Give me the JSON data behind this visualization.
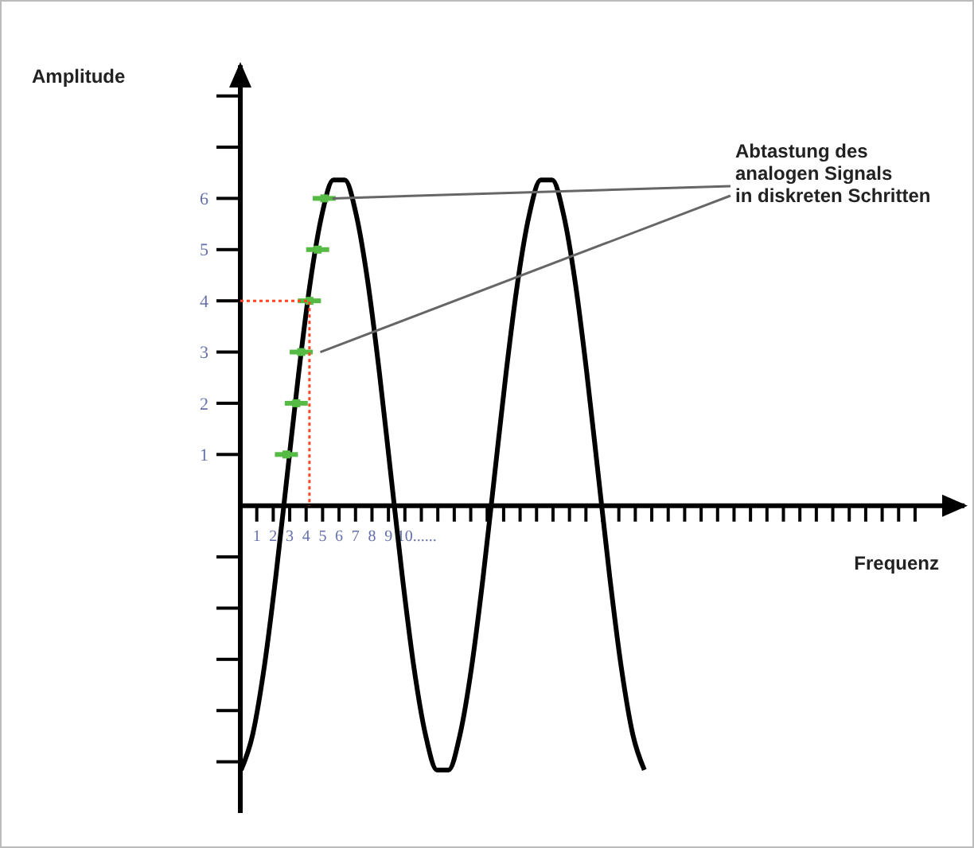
{
  "chart_data": {
    "type": "line",
    "xlabel": "Frequenz",
    "ylabel": "Amplitude",
    "xlim": [
      0,
      44
    ],
    "ylim": [
      -6,
      8.6
    ],
    "xticks": [
      {
        "value": 1,
        "label": "1"
      },
      {
        "value": 2,
        "label": "2"
      },
      {
        "value": 3,
        "label": "3"
      },
      {
        "value": 4,
        "label": "4"
      },
      {
        "value": 5,
        "label": "5"
      },
      {
        "value": 6,
        "label": "6"
      },
      {
        "value": 7,
        "label": "7"
      },
      {
        "value": 8,
        "label": "8"
      },
      {
        "value": 9,
        "label": "9"
      },
      {
        "value": 10,
        "label": "10......"
      },
      {
        "value": 11,
        "label": null
      },
      {
        "value": 12,
        "label": null
      },
      {
        "value": 13,
        "label": null
      },
      {
        "value": 14,
        "label": null
      },
      {
        "value": 15,
        "label": null
      },
      {
        "value": 16,
        "label": null
      },
      {
        "value": 17,
        "label": null
      },
      {
        "value": 18,
        "label": null
      },
      {
        "value": 19,
        "label": null
      },
      {
        "value": 20,
        "label": null
      },
      {
        "value": 21,
        "label": null
      },
      {
        "value": 22,
        "label": null
      },
      {
        "value": 23,
        "label": null
      },
      {
        "value": 24,
        "label": null
      },
      {
        "value": 25,
        "label": null
      },
      {
        "value": 26,
        "label": null
      },
      {
        "value": 27,
        "label": null
      },
      {
        "value": 28,
        "label": null
      },
      {
        "value": 29,
        "label": null
      },
      {
        "value": 30,
        "label": null
      },
      {
        "value": 31,
        "label": null
      },
      {
        "value": 32,
        "label": null
      },
      {
        "value": 33,
        "label": null
      },
      {
        "value": 34,
        "label": null
      },
      {
        "value": 35,
        "label": null
      },
      {
        "value": 36,
        "label": null
      },
      {
        "value": 37,
        "label": null
      },
      {
        "value": 38,
        "label": null
      },
      {
        "value": 39,
        "label": null
      },
      {
        "value": 40,
        "label": null
      },
      {
        "value": 41,
        "label": null
      }
    ],
    "yticks": [
      {
        "value": -5,
        "label": null
      },
      {
        "value": -4,
        "label": null
      },
      {
        "value": -3,
        "label": null
      },
      {
        "value": -2,
        "label": null
      },
      {
        "value": -1,
        "label": null
      },
      1,
      2,
      3,
      4,
      5,
      6,
      {
        "value": 7,
        "label": null
      },
      {
        "value": 8,
        "label": null
      }
    ],
    "grid": false,
    "series": [
      {
        "color": "#000000",
        "line_style": "solid",
        "marker": "none",
        "x": [
          0.05,
          0.75,
          1.45,
          2.15,
          2.85,
          3.55,
          4.25,
          4.95,
          5.65,
          6.35,
          7.05,
          7.75,
          8.45,
          9.15,
          9.85,
          10.55,
          11.25,
          11.95,
          12.65,
          13.35,
          14.05,
          14.75,
          15.45,
          16.15,
          16.85,
          17.55,
          18.25,
          18.95,
          19.65,
          20.35,
          21.05,
          21.75,
          22.45,
          23.15,
          23.85,
          24.55
        ],
        "values": [
          -5.16,
          -4.47,
          -3.16,
          -1.4,
          0.6,
          2.6,
          4.36,
          5.67,
          6.36,
          6.36,
          5.67,
          4.36,
          2.6,
          0.6,
          -1.4,
          -3.16,
          -4.47,
          -5.16,
          -5.16,
          -4.47,
          -3.16,
          -1.4,
          0.6,
          2.6,
          4.36,
          5.67,
          6.36,
          6.36,
          5.67,
          4.36,
          2.6,
          0.6,
          -1.4,
          -3.16,
          -4.47,
          -5.16
        ]
      },
      {
        "type": "scatter",
        "color": "#55bb44",
        "marker": "square",
        "x": [
          2.8,
          3.4,
          3.7,
          4.2,
          4.7,
          5.1
        ],
        "values": [
          1,
          2,
          3,
          4,
          5,
          6
        ],
        "xerrors": [
          0.7,
          0.7,
          0.7,
          0.7,
          0.7,
          0.7
        ]
      },
      {
        "type": "line",
        "color": "#ff4422",
        "line_style": "dotted",
        "marker": "none",
        "x": [
          0,
          4.2,
          4.2
        ],
        "values": [
          4,
          4,
          0
        ]
      }
    ],
    "annotations": [
      {
        "text": "Abtastung des\nanalogen Signals\nin diskreten Schritten",
        "x": 5.6,
        "y": 6
      }
    ]
  }
}
